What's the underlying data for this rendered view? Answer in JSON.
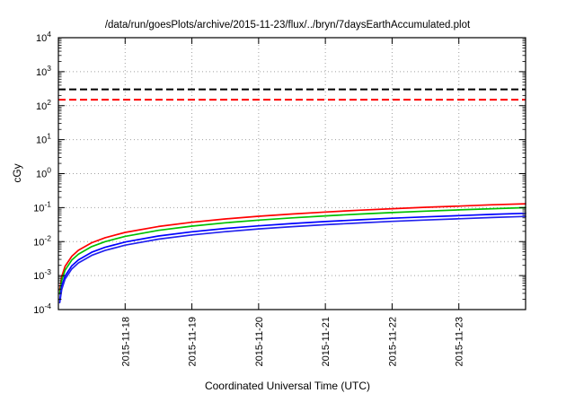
{
  "title": "/data/run/goesPlots/archive/2015-11-23/flux/../bryn/7daysEarthAccumulated.plot",
  "axes": {
    "ylabel": "cGy",
    "xlabel": "Coordinated Universal Time (UTC)",
    "y_tick_base": "10",
    "y_tick_exponents": [
      4,
      3,
      2,
      1,
      0,
      -1,
      -2,
      -3,
      -4
    ],
    "x_tick_labels": [
      "2015-11-18",
      "2015-11-19",
      "2015-11-20",
      "2015-11-21",
      "2015-11-22",
      "2015-11-23"
    ]
  },
  "colors": {
    "grid": "#a0a0a0",
    "frame": "#000000",
    "threshold_black": "#000000",
    "threshold_red": "#ff0000"
  },
  "chart_data": {
    "type": "line",
    "title": "/data/run/goesPlots/archive/2015-11-23/flux/../bryn/7daysEarthAccumulated.plot",
    "xlabel": "Coordinated Universal Time (UTC)",
    "ylabel": "cGy",
    "y_scale": "log",
    "ylim": [
      0.0001,
      10000
    ],
    "x_span_days": 7,
    "x_range": [
      "2015-11-17",
      "2015-11-24"
    ],
    "grid": true,
    "legend": false,
    "thresholds": [
      {
        "name": "upper-limit-black",
        "value": 300,
        "color": "#000000",
        "style": "dashed"
      },
      {
        "name": "lower-limit-red",
        "value": 150,
        "color": "#ff0000",
        "style": "dashed"
      }
    ],
    "t_days": [
      0.02,
      0.05,
      0.1,
      0.2,
      0.3,
      0.5,
      0.7,
      1,
      1.5,
      2,
      2.5,
      3,
      3.5,
      4,
      4.5,
      5,
      5.5,
      6,
      6.5,
      7
    ],
    "series": [
      {
        "name": "red",
        "color": "#ff0000",
        "values": [
          0.00037,
          0.00093,
          0.00186,
          0.00371,
          0.00557,
          0.00929,
          0.013,
          0.0186,
          0.0279,
          0.0371,
          0.0464,
          0.0557,
          0.065,
          0.0743,
          0.0836,
          0.0929,
          0.102,
          0.111,
          0.121,
          0.13
        ]
      },
      {
        "name": "green",
        "color": "#00c000",
        "values": [
          0.00029,
          0.00071,
          0.00143,
          0.00286,
          0.00429,
          0.00714,
          0.01,
          0.0143,
          0.0214,
          0.0286,
          0.0357,
          0.0429,
          0.05,
          0.0571,
          0.0643,
          0.0714,
          0.0786,
          0.0857,
          0.0929,
          0.1
        ]
      },
      {
        "name": "blue-upper",
        "color": "#0000ff",
        "values": [
          0.00019,
          0.00049,
          0.00097,
          0.00194,
          0.00291,
          0.00486,
          0.0068,
          0.00971,
          0.0146,
          0.0194,
          0.0243,
          0.0291,
          0.034,
          0.0389,
          0.0437,
          0.0486,
          0.0534,
          0.0583,
          0.0631,
          0.068
        ]
      },
      {
        "name": "blue-lower",
        "color": "#2222ee",
        "values": [
          0.00016,
          0.00039,
          0.00079,
          0.00157,
          0.00236,
          0.00393,
          0.0055,
          0.00786,
          0.0118,
          0.0157,
          0.0196,
          0.0236,
          0.0275,
          0.0314,
          0.0354,
          0.0393,
          0.0432,
          0.0471,
          0.0511,
          0.055
        ]
      }
    ]
  }
}
